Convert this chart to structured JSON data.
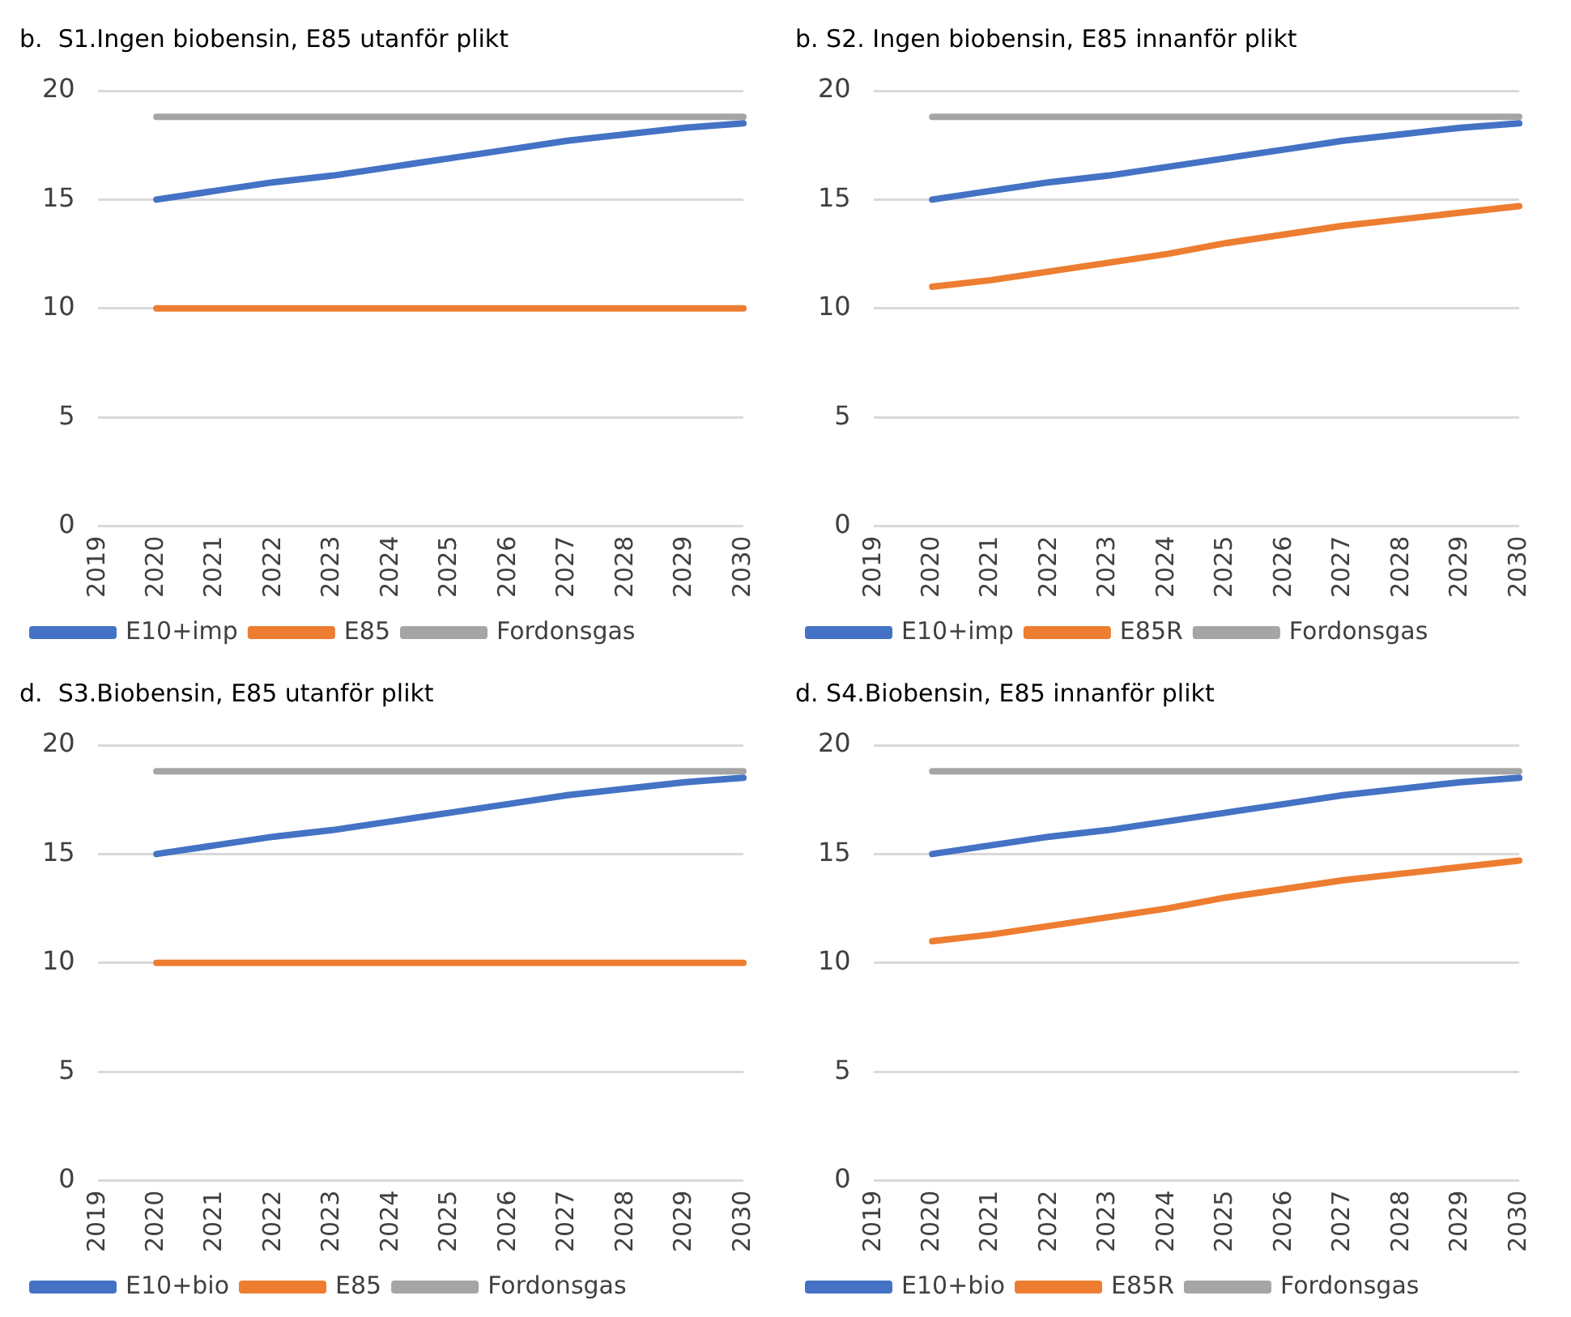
{
  "chart_data": [
    {
      "type": "line",
      "title": "b.  S1.Ingen biobensin, E85 utanför plikt",
      "categories": [
        "2019",
        "2020",
        "2021",
        "2022",
        "2023",
        "2024",
        "2025",
        "2026",
        "2027",
        "2028",
        "2029",
        "2030"
      ],
      "series": [
        {
          "name": "E10+imp",
          "color": "#4472c4",
          "values": [
            null,
            15,
            15.4,
            15.8,
            16.1,
            16.5,
            16.9,
            17.3,
            17.7,
            18,
            18.3,
            18.5
          ]
        },
        {
          "name": "E85",
          "color": "#ed7d31",
          "values": [
            null,
            10,
            10,
            10,
            10,
            10,
            10,
            10,
            10,
            10,
            10,
            10
          ]
        },
        {
          "name": "Fordonsgas",
          "color": "#a5a5a5",
          "values": [
            null,
            18.8,
            18.8,
            18.8,
            18.8,
            18.8,
            18.8,
            18.8,
            18.8,
            18.8,
            18.8,
            18.8
          ]
        }
      ],
      "ylim": [
        0,
        20
      ],
      "yticks": [
        0,
        5,
        10,
        15,
        20
      ],
      "grid": "y",
      "legend": "bottom",
      "marker": "none"
    },
    {
      "type": "line",
      "title": "b. S2. Ingen biobensin, E85 innanför plikt",
      "categories": [
        "2019",
        "2020",
        "2021",
        "2022",
        "2023",
        "2024",
        "2025",
        "2026",
        "2027",
        "2028",
        "2029",
        "2030"
      ],
      "series": [
        {
          "name": "E10+imp",
          "color": "#4472c4",
          "values": [
            null,
            15,
            15.4,
            15.8,
            16.1,
            16.5,
            16.9,
            17.3,
            17.7,
            18,
            18.3,
            18.5
          ]
        },
        {
          "name": "E85R",
          "color": "#ed7d31",
          "values": [
            null,
            11,
            11.3,
            11.7,
            12.1,
            12.5,
            13,
            13.4,
            13.8,
            14.1,
            14.4,
            14.7
          ]
        },
        {
          "name": "Fordonsgas",
          "color": "#a5a5a5",
          "values": [
            null,
            18.8,
            18.8,
            18.8,
            18.8,
            18.8,
            18.8,
            18.8,
            18.8,
            18.8,
            18.8,
            18.8
          ]
        }
      ],
      "ylim": [
        0,
        20
      ],
      "yticks": [
        0,
        5,
        10,
        15,
        20
      ],
      "grid": "y",
      "legend": "bottom",
      "marker": "none"
    },
    {
      "type": "line",
      "title": "d.  S3.Biobensin, E85 utanför plikt",
      "categories": [
        "2019",
        "2020",
        "2021",
        "2022",
        "2023",
        "2024",
        "2025",
        "2026",
        "2027",
        "2028",
        "2029",
        "2030"
      ],
      "series": [
        {
          "name": "E10+bio",
          "color": "#4472c4",
          "values": [
            null,
            15,
            15.4,
            15.8,
            16.1,
            16.5,
            16.9,
            17.3,
            17.7,
            18,
            18.3,
            18.5
          ]
        },
        {
          "name": "E85",
          "color": "#ed7d31",
          "values": [
            null,
            10,
            10,
            10,
            10,
            10,
            10,
            10,
            10,
            10,
            10,
            10
          ]
        },
        {
          "name": "Fordonsgas",
          "color": "#a5a5a5",
          "values": [
            null,
            18.8,
            18.8,
            18.8,
            18.8,
            18.8,
            18.8,
            18.8,
            18.8,
            18.8,
            18.8,
            18.8
          ]
        }
      ],
      "ylim": [
        0,
        20
      ],
      "yticks": [
        0,
        5,
        10,
        15,
        20
      ],
      "grid": "y",
      "legend": "bottom",
      "marker": "none"
    },
    {
      "type": "line",
      "title": "d. S4.Biobensin, E85 innanför plikt",
      "categories": [
        "2019",
        "2020",
        "2021",
        "2022",
        "2023",
        "2024",
        "2025",
        "2026",
        "2027",
        "2028",
        "2029",
        "2030"
      ],
      "series": [
        {
          "name": "E10+bio",
          "color": "#4472c4",
          "values": [
            null,
            15,
            15.4,
            15.8,
            16.1,
            16.5,
            16.9,
            17.3,
            17.7,
            18,
            18.3,
            18.5
          ]
        },
        {
          "name": "E85R",
          "color": "#ed7d31",
          "values": [
            null,
            11,
            11.3,
            11.7,
            12.1,
            12.5,
            13,
            13.4,
            13.8,
            14.1,
            14.4,
            14.7
          ]
        },
        {
          "name": "Fordonsgas",
          "color": "#a5a5a5",
          "values": [
            null,
            18.8,
            18.8,
            18.8,
            18.8,
            18.8,
            18.8,
            18.8,
            18.8,
            18.8,
            18.8,
            18.8
          ]
        }
      ],
      "ylim": [
        0,
        20
      ],
      "yticks": [
        0,
        5,
        10,
        15,
        20
      ],
      "grid": "y",
      "legend": "bottom",
      "marker": "none"
    }
  ]
}
